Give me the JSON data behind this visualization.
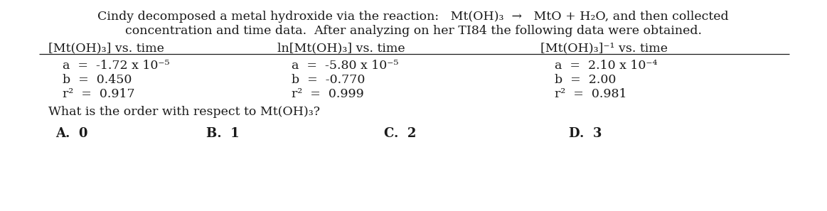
{
  "bg_color": "#ffffff",
  "title_line1": "Cindy decomposed a metal hydroxide via the reaction:   Mt(OH)₃  →   MtO + H₂O, and then collected",
  "title_line2": "concentration and time data.  After analyzing on her TI84 the following data were obtained.",
  "col1_header": "[Mt(OH)₃] vs. time",
  "col2_header": "ln[Mt(OH)₃] vs. time",
  "col3_header": "[Mt(OH)₃]⁻¹ vs. time",
  "col1_a": "a  =  -1.72 x 10⁻⁵",
  "col1_b": "b  =  0.450",
  "col1_r2": "r²  =  0.917",
  "col2_a": "a  =  -5.80 x 10⁻⁵",
  "col2_b": "b  =  -0.770",
  "col2_r2": "r²  =  0.999",
  "col3_a": "a  =  2.10 x 10⁻⁴",
  "col3_b": "b  =  2.00",
  "col3_r2": "r²  =  0.981",
  "question": "What is the order with respect to Mt(OH)₃?",
  "ans_A": "A.  0",
  "ans_B": "B.  1",
  "ans_C": "C.  2",
  "ans_D": "D.  3",
  "font_size_title": 12.5,
  "font_size_header": 12.5,
  "font_size_data": 12.5,
  "font_size_question": 12.5,
  "font_size_answers": 13,
  "text_color": "#1a1a1a",
  "font_family": "DejaVu Serif"
}
